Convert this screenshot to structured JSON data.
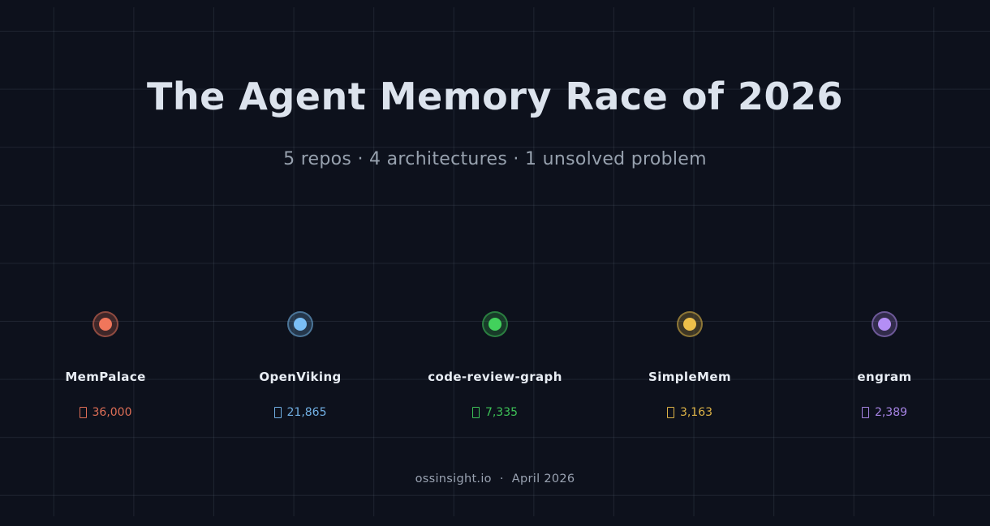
{
  "header": {
    "title": "The Agent Memory Race of 2026",
    "subtitle": "5 repos · 4 architectures · 1 unsolved problem"
  },
  "footer": {
    "source": "ossinsight.io",
    "separator": "·",
    "date": "April 2026"
  },
  "icons": {
    "star": "star-icon"
  },
  "colors": {
    "background": "#0d111c",
    "grid_line": "rgba(148,163,184,0.13)",
    "title_text": "#dce3ed",
    "subtitle_text": "#97a1ae",
    "label_text": "#e8edf4",
    "footer_text": "#99a2b1"
  },
  "chart_data": {
    "type": "scatter",
    "title": "The Agent Memory Race of 2026",
    "subtitle": "5 repos · 4 architectures · 1 unsolved problem",
    "grid": true,
    "legend_position": "none",
    "categories": [
      "MemPalace",
      "OpenViking",
      "code-review-graph",
      "SimpleMem",
      "engram"
    ],
    "values": [
      36000,
      21865,
      7335,
      3163,
      2389
    ],
    "points": [
      {
        "repo": "MemPalace",
        "stars": 36000,
        "stars_label": "36,000",
        "color": "#f0765b"
      },
      {
        "repo": "OpenViking",
        "stars": 21865,
        "stars_label": "21,865",
        "color": "#7abef5"
      },
      {
        "repo": "code-review-graph",
        "stars": 7335,
        "stars_label": "7,335",
        "color": "#42d15c"
      },
      {
        "repo": "SimpleMem",
        "stars": 3163,
        "stars_label": "3,163",
        "color": "#eec04a"
      },
      {
        "repo": "engram",
        "stars": 2389,
        "stars_label": "2,389",
        "color": "#b48ef5"
      }
    ],
    "footer": "ossinsight.io · April 2026"
  }
}
